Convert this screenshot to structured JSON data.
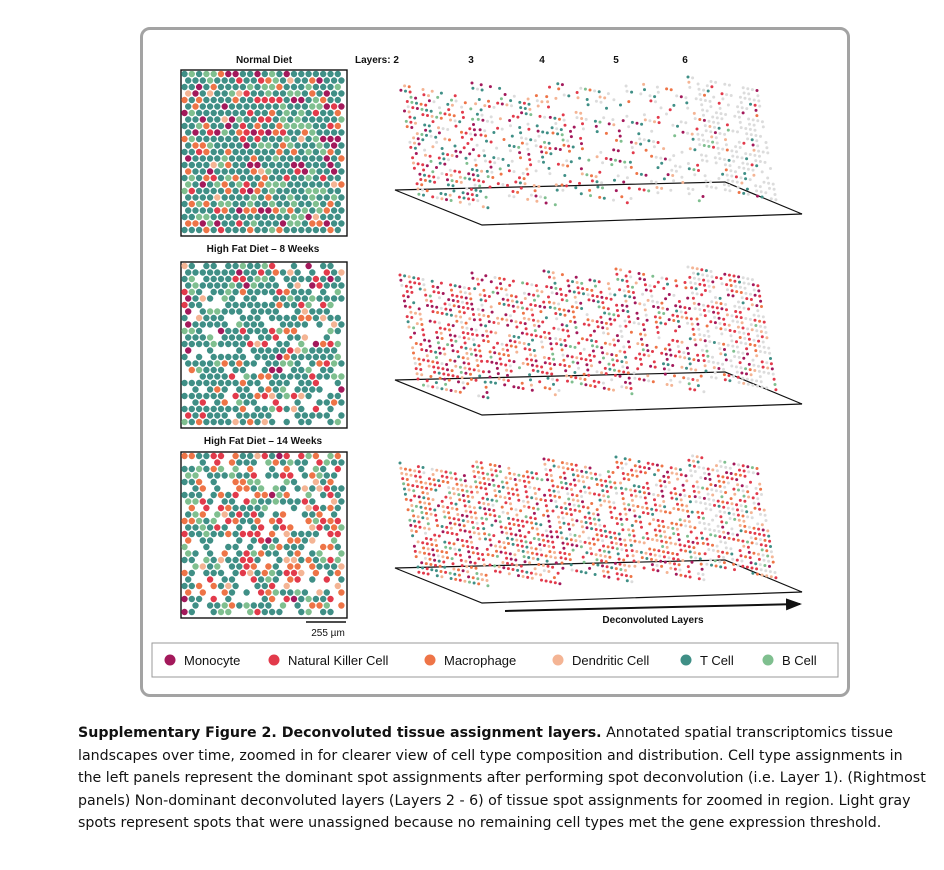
{
  "figure": {
    "panels": [
      {
        "title": "Normal Diet"
      },
      {
        "title": "High Fat Diet – 8 Weeks"
      },
      {
        "title": "High Fat Diet – 14 Weeks"
      }
    ],
    "layer_prefix": "Layers: 2",
    "layer_numbers": [
      "3",
      "4",
      "5",
      "6"
    ],
    "scale_bar_label": "255 µm",
    "axis_label": "Deconvoluted Layers",
    "legend": [
      {
        "label": "Monocyte",
        "color": "#a3195b"
      },
      {
        "label": "Natural Killer Cell",
        "color": "#e23a4b"
      },
      {
        "label": "Macrophage",
        "color": "#ee7447"
      },
      {
        "label": "Dendritic Cell",
        "color": "#f4b494"
      },
      {
        "label": "T Cell",
        "color": "#3f8f86"
      },
      {
        "label": "B Cell",
        "color": "#7fbf8f"
      }
    ],
    "unassigned_color": "#dcdcdc"
  },
  "caption": {
    "title": "Supplementary Figure 2. Deconvoluted tissue assignment layers.",
    "body": " Annotated spatial transcriptomics tissue landscapes over time, zoomed in for clearer view of cell type composition and distribution. Cell type assignments in the left panels represent the dominant spot assignments after performing spot deconvolution (i.e. Layer 1). (Rightmost panels) Non-dominant deconvoluted layers (Layers 2 - 6) of tissue spot assignments for zoomed in region. Light gray spots represent spots that were unassigned because no remaining cell types met the gene expression threshold."
  }
}
